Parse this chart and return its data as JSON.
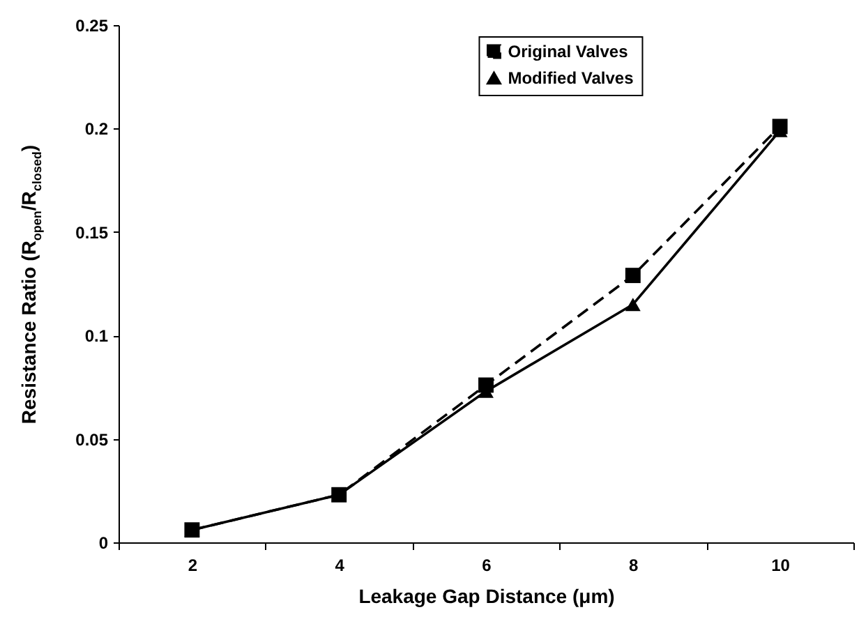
{
  "chart_data": {
    "type": "line",
    "xlabel": "Leakage Gap Distance (μm)",
    "ylabel": "Resistance Ratio (R$_{open}$/R$_{closed}$)",
    "categories": [
      "2",
      "4",
      "6",
      "8",
      "10"
    ],
    "series": [
      {
        "name": "Original Valves",
        "color": "#000000",
        "marker": "square",
        "line_style": "dashed",
        "values": [
          0.006,
          0.023,
          0.076,
          0.129,
          0.201
        ]
      },
      {
        "name": "Modified Valves",
        "color": "#000000",
        "marker": "triangle",
        "line_style": "solid",
        "values": [
          0.006,
          0.023,
          0.073,
          0.115,
          0.199
        ]
      }
    ],
    "ylim": [
      0,
      0.25
    ],
    "yticks": [
      0,
      0.05,
      0.1,
      0.15,
      0.2,
      0.25
    ],
    "legend": "top right"
  }
}
